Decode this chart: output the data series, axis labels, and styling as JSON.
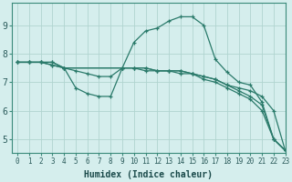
{
  "xlabel": "Humidex (Indice chaleur)",
  "xlim": [
    -0.5,
    23
  ],
  "ylim": [
    4.5,
    9.8
  ],
  "xticks": [
    0,
    1,
    2,
    3,
    4,
    5,
    6,
    7,
    8,
    9,
    10,
    11,
    12,
    13,
    14,
    15,
    16,
    17,
    18,
    19,
    20,
    21,
    22,
    23
  ],
  "yticks": [
    5,
    6,
    7,
    8,
    9
  ],
  "background_color": "#d5eeed",
  "grid_color": "#b0d4d0",
  "line_color": "#2a7a6a",
  "lines": [
    {
      "x": [
        0,
        1,
        2,
        3,
        4,
        5,
        6,
        7,
        8,
        9,
        10,
        11,
        12,
        13,
        14,
        15,
        16,
        17,
        18,
        19,
        20,
        21,
        22,
        23
      ],
      "y": [
        7.7,
        7.7,
        7.7,
        7.7,
        7.5,
        6.8,
        6.6,
        6.5,
        6.5,
        7.5,
        8.4,
        8.8,
        8.9,
        9.15,
        9.3,
        9.3,
        9.0,
        7.8,
        7.35,
        7.0,
        6.9,
        6.3,
        5.0,
        4.6
      ]
    },
    {
      "x": [
        0,
        1,
        2,
        3,
        4,
        5,
        6,
        7,
        8,
        9,
        10,
        11,
        12,
        13,
        14,
        15,
        16,
        17,
        18,
        19,
        20,
        21,
        22,
        23
      ],
      "y": [
        7.7,
        7.7,
        7.7,
        7.6,
        7.5,
        7.4,
        7.3,
        7.2,
        7.2,
        7.5,
        7.5,
        7.5,
        7.4,
        7.4,
        7.4,
        7.3,
        7.2,
        7.1,
        6.9,
        6.8,
        6.7,
        6.5,
        6.0,
        4.6
      ]
    },
    {
      "x": [
        0,
        1,
        2,
        3,
        4,
        9,
        10,
        11,
        12,
        13,
        14,
        15,
        16,
        17,
        18,
        19,
        20,
        21,
        22,
        23
      ],
      "y": [
        7.7,
        7.7,
        7.7,
        7.6,
        7.5,
        7.5,
        7.5,
        7.5,
        7.4,
        7.4,
        7.4,
        7.3,
        7.2,
        7.1,
        6.9,
        6.7,
        6.5,
        6.2,
        5.0,
        4.6
      ]
    },
    {
      "x": [
        0,
        1,
        2,
        3,
        4,
        9,
        10,
        11,
        12,
        13,
        14,
        15,
        16,
        17,
        18,
        19,
        20,
        21,
        22,
        23
      ],
      "y": [
        7.7,
        7.7,
        7.7,
        7.7,
        7.5,
        7.5,
        7.5,
        7.4,
        7.4,
        7.4,
        7.3,
        7.3,
        7.1,
        7.0,
        6.8,
        6.6,
        6.4,
        6.0,
        5.0,
        4.6
      ]
    }
  ]
}
